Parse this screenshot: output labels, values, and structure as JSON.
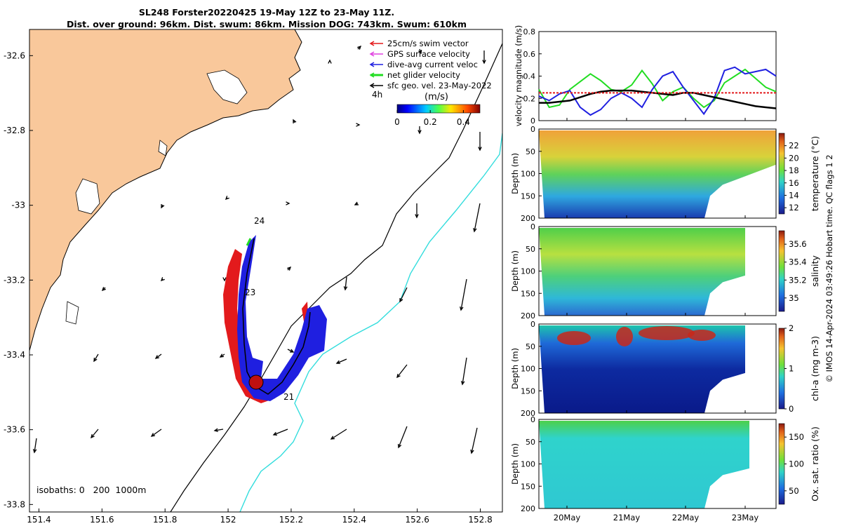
{
  "title": {
    "line1": "SL248 Forster20220425 19-May 12Z to 23-May 11Z.",
    "line2": "Dist. over ground: 96km. Dist. swum: 86km. Mission DOG: 743km. Swum: 610km"
  },
  "map": {
    "x_ticks": [
      "151.4",
      "151.6",
      "151.8",
      "152",
      "152.2",
      "152.4",
      "152.6",
      "152.8"
    ],
    "x_tick_values": [
      151.4,
      151.6,
      151.8,
      152.0,
      152.2,
      152.4,
      152.6,
      152.8
    ],
    "y_ticks": [
      "-32.6",
      "-32.8",
      "-33",
      "-33.2",
      "-33.4",
      "-33.6",
      "-33.8"
    ],
    "y_tick_values": [
      -32.6,
      -32.8,
      -33.0,
      -33.2,
      -33.4,
      -33.6,
      -33.8
    ],
    "xlim": [
      151.37,
      152.87
    ],
    "ylim": [
      -33.82,
      -32.53
    ],
    "legend": [
      {
        "label": "25cm/s swim vector",
        "color": "#e31a1c"
      },
      {
        "label": "GPS surface velocity",
        "color": "#e040e0"
      },
      {
        "label": "dive-avg current veloc",
        "color": "#1f1fe0"
      },
      {
        "label": "net glider velocity",
        "color": "#22dd22"
      },
      {
        "label": "sfc geo. vel. 23-May-2022",
        "color": "#000000"
      }
    ],
    "legend_note": "4h",
    "colorbar_unit": "(m/s)",
    "colorbar_ticks": [
      "0",
      "0.2",
      "0.4"
    ],
    "colorbar_range": [
      0,
      0.5
    ],
    "day_labels": [
      "24",
      "23",
      "21"
    ],
    "isobaths_label": "isobaths: 0   200  1000m",
    "land_color": "#f9c89b",
    "isobath_200_color": "#000000",
    "isobath_1000_color": "#33dddd"
  },
  "timeseries": {
    "ylabel": "velocity magnitude (m/s)",
    "y_ticks": [
      "0",
      "0.2",
      "0.4",
      "0.6",
      "0.8"
    ],
    "ylim": [
      0,
      0.8
    ],
    "time_ticks": [
      "20May",
      "21May",
      "22May",
      "23May"
    ],
    "series": [
      {
        "color": "#22dd22",
        "values": [
          0.28,
          0.12,
          0.14,
          0.28,
          0.35,
          0.42,
          0.36,
          0.28,
          0.26,
          0.32,
          0.45,
          0.33,
          0.18,
          0.26,
          0.3,
          0.2,
          0.12,
          0.18,
          0.34,
          0.4,
          0.46,
          0.38,
          0.3,
          0.26
        ]
      },
      {
        "color": "#1f1fe0",
        "values": [
          0.22,
          0.18,
          0.24,
          0.27,
          0.12,
          0.05,
          0.1,
          0.2,
          0.25,
          0.2,
          0.12,
          0.28,
          0.4,
          0.44,
          0.3,
          0.18,
          0.06,
          0.2,
          0.45,
          0.48,
          0.42,
          0.44,
          0.46,
          0.4
        ]
      },
      {
        "color": "#000000",
        "values": [
          0.16,
          0.16,
          0.17,
          0.18,
          0.21,
          0.24,
          0.26,
          0.27,
          0.27,
          0.27,
          0.26,
          0.25,
          0.24,
          0.23,
          0.25,
          0.25,
          0.23,
          0.21,
          0.19,
          0.17,
          0.15,
          0.13,
          0.12,
          0.11
        ]
      },
      {
        "color": "#e31a1c",
        "values": [
          0.25,
          0.25,
          0.25,
          0.25,
          0.25,
          0.25,
          0.25,
          0.25,
          0.25,
          0.25,
          0.25,
          0.25,
          0.25,
          0.25,
          0.25,
          0.25,
          0.25,
          0.25,
          0.25,
          0.25,
          0.25,
          0.25,
          0.25,
          0.25
        ]
      }
    ]
  },
  "profiles": [
    {
      "label": "temperature (°C)",
      "cticks": [
        "12",
        "14",
        "16",
        "18",
        "20",
        "22"
      ],
      "crange": [
        11,
        24
      ],
      "surface": "#f3a13a",
      "deep": "#2a5fd0",
      "bottom": "#1830a8"
    },
    {
      "label": "salinity",
      "cticks": [
        "35",
        "35.2",
        "35.4",
        "35.6"
      ],
      "crange": [
        34.85,
        35.75
      ],
      "surface": "#6fd23a",
      "deep": "#31b8d8",
      "bottom": "#2b6ad0"
    },
    {
      "label": "chl-a (mg m-3)",
      "cticks": [
        "0",
        "1",
        "2"
      ],
      "crange": [
        0,
        2
      ],
      "surface": "#2fc7a4",
      "deep": "#0d2aa0",
      "bottom": "#0a1a8a"
    },
    {
      "label": "Ox. sat. ratio (%)",
      "cticks": [
        "50",
        "100",
        "150"
      ],
      "crange": [
        25,
        175
      ],
      "surface": "#4cd04a",
      "deep": "#2fd3cc",
      "bottom": "#2fc8d2"
    }
  ],
  "depth_label": "Depth (m)",
  "depth_ticks": [
    "0",
    "50",
    "100",
    "150",
    "200"
  ],
  "depth_range": [
    0,
    200
  ],
  "timestamp": "© IMOS 14-Apr-2024 03:49:26 Hobart time. QC flags 1  2"
}
